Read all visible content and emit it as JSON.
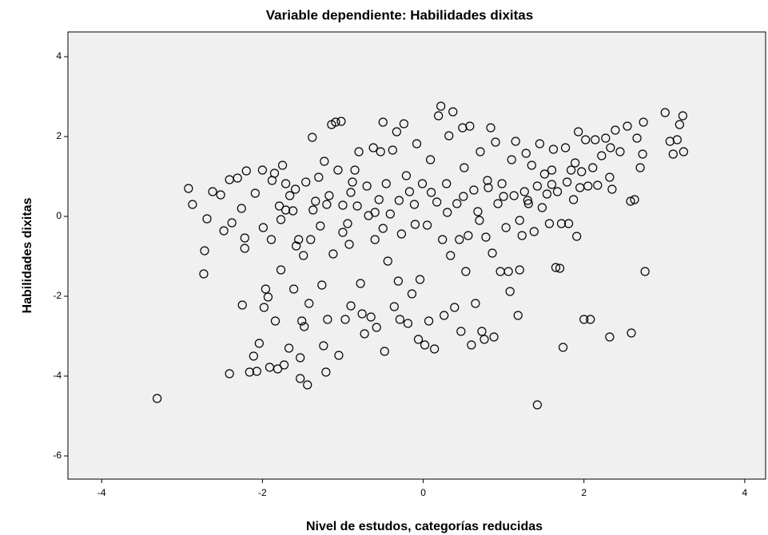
{
  "chart_data": {
    "type": "scatter",
    "title": "Variable dependiente: Habilidades dixitas",
    "xlabel": "Nivel de estudos, categorías reducidas",
    "ylabel": "Habilidades dixitas",
    "color": "#000000",
    "xlim": [
      -4.42,
      4.26
    ],
    "ylim": [
      -6.58,
      4.62
    ],
    "xticks": [
      -4,
      -2,
      0,
      2,
      4
    ],
    "yticks": [
      -6,
      -4,
      -2,
      0,
      2,
      4
    ],
    "x": [
      -3.31,
      1.42,
      -2.92,
      -2.87,
      -2.69,
      -2.72,
      -2.73,
      -2.62,
      -2.52,
      -2.48,
      -2.41,
      -2.38,
      -2.41,
      -2.31,
      -2.26,
      -2.25,
      -2.22,
      -2.22,
      -2.2,
      -2.16,
      -2.11,
      -2.09,
      -2.07,
      -2.04,
      -2.0,
      -1.99,
      -1.96,
      -1.98,
      -1.93,
      -1.91,
      -1.89,
      -1.88,
      -1.85,
      -1.84,
      -1.81,
      -1.79,
      -1.77,
      -1.77,
      -1.75,
      -1.73,
      -1.71,
      -1.71,
      -1.67,
      -1.66,
      -1.62,
      -1.61,
      -1.59,
      -1.58,
      -1.55,
      -1.53,
      -1.53,
      -1.51,
      -1.49,
      -1.48,
      -1.46,
      -1.44,
      -1.42,
      -1.4,
      -1.38,
      -1.37,
      -1.34,
      -1.3,
      -1.28,
      -1.26,
      -1.24,
      -1.23,
      -1.21,
      -1.19,
      -1.17,
      -1.14,
      -1.12,
      -1.09,
      -1.06,
      -1.05,
      -1.02,
      -1.0,
      -0.97,
      -0.94,
      -0.92,
      -0.9,
      -0.88,
      -0.85,
      -0.82,
      -0.8,
      -0.78,
      -0.76,
      -0.73,
      -0.7,
      -0.68,
      -0.65,
      -0.62,
      -0.6,
      -0.58,
      -0.55,
      -0.53,
      -0.5,
      -0.48,
      -0.46,
      -0.44,
      -0.41,
      -0.38,
      -0.36,
      -0.33,
      -0.31,
      -0.29,
      -0.27,
      -0.24,
      -0.21,
      -0.19,
      -0.17,
      -0.14,
      -0.11,
      -0.08,
      -0.06,
      -0.04,
      -0.01,
      0.02,
      0.05,
      0.07,
      0.09,
      0.14,
      0.17,
      0.19,
      0.22,
      0.24,
      0.26,
      0.29,
      0.32,
      0.34,
      0.37,
      0.39,
      0.42,
      0.45,
      0.47,
      0.49,
      0.51,
      0.53,
      0.56,
      0.58,
      0.6,
      0.63,
      0.65,
      0.68,
      0.71,
      0.73,
      0.76,
      0.78,
      0.81,
      0.84,
      0.86,
      0.88,
      0.9,
      0.93,
      0.96,
      0.98,
      1.03,
      1.06,
      1.08,
      1.1,
      1.13,
      1.15,
      1.18,
      1.2,
      1.23,
      1.26,
      1.28,
      1.31,
      1.35,
      1.38,
      1.42,
      1.45,
      1.48,
      1.51,
      1.54,
      1.57,
      1.6,
      1.62,
      1.65,
      1.67,
      1.7,
      1.72,
      1.74,
      1.77,
      1.79,
      1.81,
      1.84,
      1.87,
      1.89,
      1.91,
      1.93,
      1.95,
      1.97,
      2.0,
      2.02,
      2.05,
      2.08,
      2.11,
      2.14,
      2.17,
      2.22,
      2.27,
      2.32,
      2.33,
      2.32,
      2.35,
      2.39,
      2.45,
      2.54,
      2.58,
      2.59,
      2.63,
      2.66,
      2.7,
      2.73,
      2.74,
      2.76,
      3.01,
      3.07,
      3.11,
      3.16,
      3.19,
      3.23,
      3.24,
      0.5,
      0.3,
      -0.3,
      -0.6,
      -0.9,
      -1.2,
      1.0,
      1.3,
      1.6,
      0.8,
      0.1,
      -0.1,
      0.7,
      -0.5,
      1.2,
      -1.0
    ],
    "y": [
      -4.56,
      -4.72,
      0.7,
      0.3,
      -0.06,
      -0.86,
      -1.44,
      0.62,
      0.54,
      -0.36,
      0.92,
      -0.16,
      -3.94,
      0.96,
      0.2,
      -2.22,
      -0.54,
      -0.8,
      1.14,
      -3.9,
      -3.5,
      0.58,
      -3.88,
      -3.18,
      1.16,
      -0.28,
      -1.82,
      -2.28,
      -2.02,
      -3.78,
      -0.58,
      0.9,
      1.08,
      -2.62,
      -3.82,
      0.26,
      -1.34,
      -0.08,
      1.28,
      -3.72,
      0.16,
      0.82,
      -3.3,
      0.52,
      0.14,
      -1.82,
      0.68,
      -0.74,
      -0.58,
      -4.06,
      -3.54,
      -2.62,
      -0.98,
      -2.76,
      0.86,
      -4.22,
      -2.18,
      -0.58,
      1.98,
      0.16,
      0.38,
      0.98,
      -0.24,
      -1.72,
      -3.24,
      1.38,
      -3.9,
      -2.58,
      0.52,
      2.3,
      -0.94,
      2.36,
      1.16,
      -3.48,
      2.38,
      0.28,
      -2.58,
      -0.18,
      -0.7,
      -2.24,
      0.86,
      1.16,
      0.26,
      1.62,
      -1.68,
      -2.44,
      -2.94,
      0.76,
      0.02,
      -2.52,
      1.72,
      -0.58,
      -2.78,
      0.42,
      1.62,
      2.36,
      -3.38,
      0.82,
      -1.12,
      0.06,
      1.66,
      -2.26,
      2.12,
      -1.62,
      -2.58,
      -0.44,
      2.32,
      1.02,
      -2.68,
      0.62,
      -1.94,
      0.3,
      1.82,
      -3.08,
      -1.58,
      0.82,
      -3.22,
      -0.22,
      -2.62,
      1.42,
      -3.32,
      0.36,
      2.52,
      2.76,
      -0.58,
      -2.48,
      0.82,
      2.02,
      -0.98,
      2.62,
      -2.28,
      0.32,
      -0.58,
      -2.88,
      2.22,
      1.22,
      -1.38,
      -0.48,
      2.26,
      -3.22,
      0.66,
      -2.18,
      0.12,
      1.62,
      -2.88,
      -3.08,
      -0.52,
      0.72,
      2.22,
      -0.92,
      -3.02,
      1.86,
      0.32,
      -1.38,
      0.82,
      -0.28,
      -1.38,
      -1.88,
      1.42,
      0.52,
      1.88,
      -2.48,
      -1.34,
      -0.48,
      0.62,
      1.58,
      0.32,
      1.28,
      -0.38,
      0.76,
      1.82,
      0.22,
      1.06,
      0.56,
      -0.18,
      1.16,
      1.68,
      -1.28,
      0.62,
      -1.3,
      -0.18,
      -3.28,
      1.72,
      0.86,
      -0.18,
      1.16,
      0.42,
      1.34,
      -0.5,
      2.12,
      0.72,
      1.12,
      -2.58,
      1.92,
      0.76,
      -2.58,
      1.22,
      1.92,
      0.78,
      1.52,
      1.96,
      0.98,
      1.72,
      -3.02,
      0.68,
      2.16,
      1.62,
      2.26,
      0.38,
      -2.92,
      0.42,
      1.96,
      1.22,
      1.56,
      2.36,
      -1.38,
      2.6,
      1.88,
      1.56,
      1.92,
      2.3,
      2.52,
      1.62,
      0.5,
      0.1,
      0.4,
      0.1,
      0.6,
      0.3,
      0.5,
      0.4,
      0.8,
      0.9,
      0.6,
      -0.2,
      -0.1,
      -0.3,
      -0.1,
      -0.4
    ]
  }
}
